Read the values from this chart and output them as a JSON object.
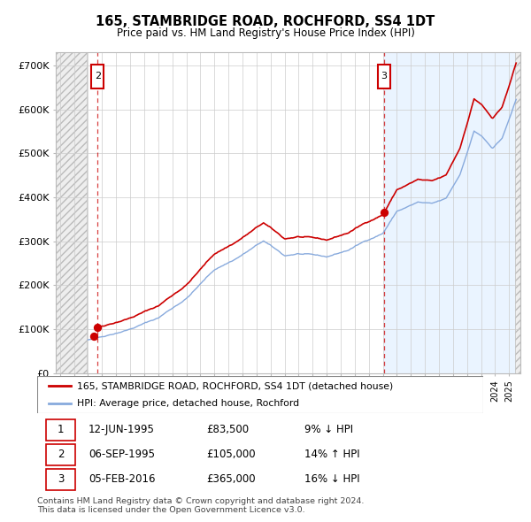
{
  "title": "165, STAMBRIDGE ROAD, ROCHFORD, SS4 1DT",
  "subtitle": "Price paid vs. HM Land Registry's House Price Index (HPI)",
  "ylim": [
    0,
    730000
  ],
  "yticks": [
    0,
    100000,
    200000,
    300000,
    400000,
    500000,
    600000,
    700000
  ],
  "ytick_labels": [
    "£0",
    "£100K",
    "£200K",
    "£300K",
    "£400K",
    "£500K",
    "£600K",
    "£700K"
  ],
  "xlim_start": 1992.7,
  "xlim_end": 2025.8,
  "hatch_end": 1994.92,
  "blue_shade_start": 2016.08,
  "right_hatch_start": 2025.4,
  "sale_dates": [
    1995.44,
    1995.68,
    2016.09
  ],
  "sale_prices": [
    83500,
    105000,
    365000
  ],
  "sale_labels": [
    "1",
    "2",
    "3"
  ],
  "plot_labels": [
    "2",
    "3"
  ],
  "plot_label_dates": [
    1995.68,
    2016.09
  ],
  "red_color": "#cc0000",
  "hpi_line_color": "#88aadd",
  "legend_entries": [
    "165, STAMBRIDGE ROAD, ROCHFORD, SS4 1DT (detached house)",
    "HPI: Average price, detached house, Rochford"
  ],
  "table_rows": [
    [
      "1",
      "12-JUN-1995",
      "£83,500",
      "9% ↓ HPI"
    ],
    [
      "2",
      "06-SEP-1995",
      "£105,000",
      "14% ↑ HPI"
    ],
    [
      "3",
      "05-FEB-2016",
      "£365,000",
      "16% ↓ HPI"
    ]
  ],
  "footer": "Contains HM Land Registry data © Crown copyright and database right 2024.\nThis data is licensed under the Open Government Licence v3.0."
}
